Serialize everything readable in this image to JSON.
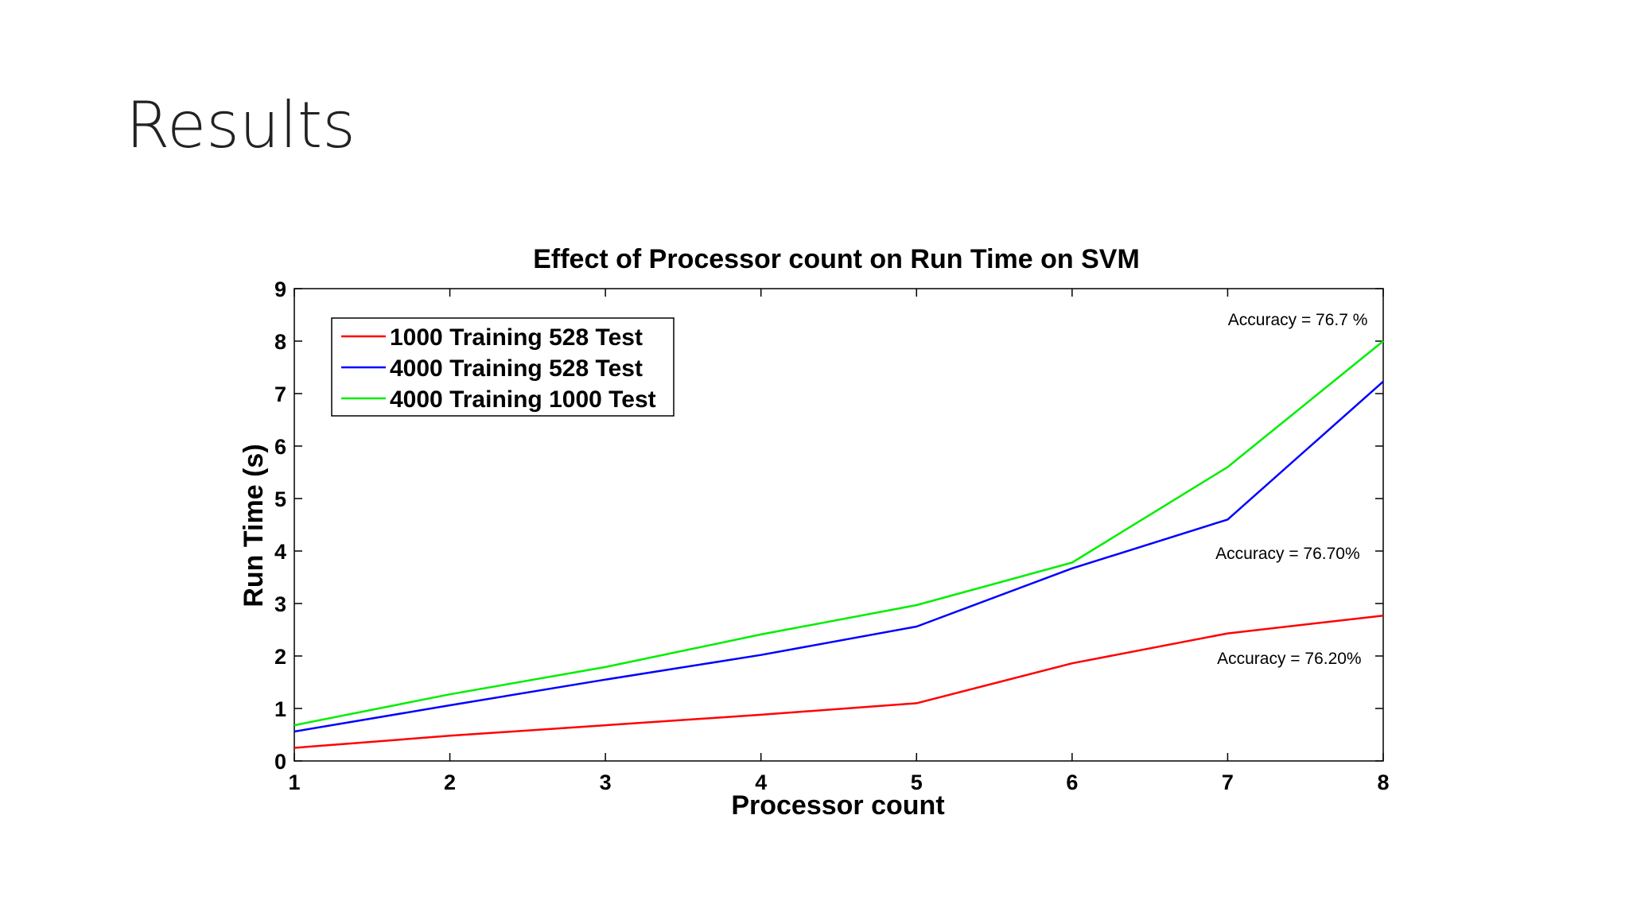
{
  "slide": {
    "title": "Results"
  },
  "chart_data": {
    "type": "line",
    "title": "Effect of Processor count on Run Time on SVM",
    "xlabel": "Processor count",
    "ylabel": "Run Time (s)",
    "xlim": [
      1,
      8
    ],
    "ylim": [
      0,
      9
    ],
    "x_ticks": [
      1,
      2,
      3,
      4,
      5,
      6,
      7,
      8
    ],
    "y_ticks": [
      0,
      1,
      2,
      3,
      4,
      5,
      6,
      7,
      8,
      9
    ],
    "x": [
      1,
      2,
      3,
      4,
      5,
      6,
      7,
      8
    ],
    "grid": false,
    "legend_position": "top-left",
    "series": [
      {
        "name": "1000 Training 528 Test",
        "color": "#ff0000",
        "values": [
          0.25,
          0.48,
          0.68,
          0.88,
          1.1,
          1.86,
          2.43,
          2.77
        ]
      },
      {
        "name": "4000 Training 528 Test",
        "color": "#0000ff",
        "values": [
          0.56,
          1.06,
          1.55,
          2.02,
          2.56,
          3.67,
          4.6,
          7.23
        ]
      },
      {
        "name": "4000 Training 1000 Test",
        "color": "#00ee00",
        "values": [
          0.68,
          1.27,
          1.79,
          2.41,
          2.97,
          3.78,
          5.6,
          8.0
        ]
      }
    ],
    "annotations": [
      {
        "text": "Accuracy = 76.7 %",
        "x": 7.9,
        "y": 8.3
      },
      {
        "text": "Accuracy = 76.70%",
        "x": 7.85,
        "y": 3.85
      },
      {
        "text": "Accuracy = 76.20%",
        "x": 7.86,
        "y": 1.85
      }
    ]
  }
}
